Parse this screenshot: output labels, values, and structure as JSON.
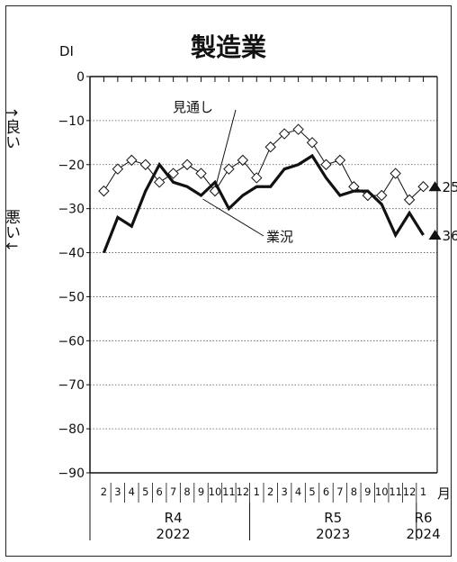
{
  "chart_data": {
    "type": "line",
    "title": "製造業",
    "ylabel": "DI",
    "y_good": "↑良い",
    "y_bad": "悪い↓",
    "ylim": [
      -90,
      0
    ],
    "yticks": [
      0,
      -10,
      -20,
      -30,
      -40,
      -50,
      -60,
      -70,
      -80,
      -90
    ],
    "ytick_labels": [
      "0",
      "−10",
      "−20",
      "−30",
      "−40",
      "−50",
      "−60",
      "−70",
      "−80",
      "−90"
    ],
    "month_unit": "月",
    "months": [
      "2",
      "3",
      "4",
      "5",
      "6",
      "7",
      "8",
      "9",
      "10",
      "11",
      "12",
      "1",
      "2",
      "3",
      "4",
      "5",
      "6",
      "7",
      "8",
      "9",
      "10",
      "11",
      "12",
      "1"
    ],
    "eras": [
      {
        "era": "R4",
        "year": "2022",
        "from": 0,
        "to": 10
      },
      {
        "era": "R5",
        "year": "2023",
        "from": 11,
        "to": 22
      },
      {
        "era": "R6",
        "year": "2024",
        "from": 23,
        "to": 23
      }
    ],
    "series": [
      {
        "name": "業況",
        "values": [
          -40,
          -32,
          -34,
          -26,
          -20,
          -24,
          -25,
          -27,
          -24,
          -30,
          -27,
          -25,
          -25,
          -21,
          -20,
          -18,
          -23,
          -27,
          -26,
          -26,
          -29,
          -36,
          -31,
          -36
        ],
        "end_label": "36"
      },
      {
        "name": "見通し",
        "values": [
          -26,
          -21,
          -19,
          -20,
          -24,
          -22,
          -20,
          -22,
          -26,
          -21,
          -19,
          -23,
          -16,
          -13,
          -12,
          -15,
          -20,
          -19,
          -25,
          -27,
          -27,
          -22,
          -28,
          -25
        ],
        "end_label": "25"
      }
    ],
    "grid": true
  }
}
